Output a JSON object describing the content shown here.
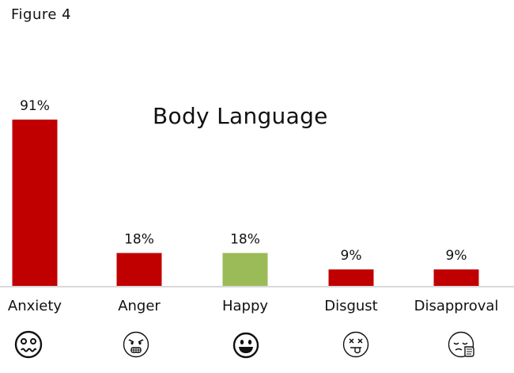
{
  "figure_label": "Figure 4",
  "chart_data": {
    "type": "bar",
    "title": "Body Language",
    "categories": [
      "Anxiety",
      "Anger",
      "Happy",
      "Disgust",
      "Disapproval"
    ],
    "values": [
      91,
      18,
      18,
      9,
      9
    ],
    "value_labels": [
      "91%",
      "18%",
      "18%",
      "9%",
      "9%"
    ],
    "bar_colors": [
      "#c00000",
      "#c00000",
      "#9bbb59",
      "#c00000",
      "#c00000"
    ],
    "category_icons": [
      "anxious-face-icon",
      "angry-face-icon",
      "grinning-face-icon",
      "dizzy-face-icon",
      "disapproving-face-icon"
    ],
    "xlabel": "",
    "ylabel": "",
    "ylim": [
      0,
      91
    ],
    "grid": false,
    "legend": "none"
  }
}
